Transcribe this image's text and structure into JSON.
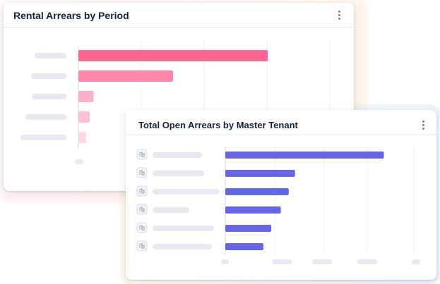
{
  "cards": [
    {
      "title": "Rental Arrears by Period",
      "menu_icon": "kebab-vertical-icon"
    },
    {
      "title": "Total Open Arrears by Master Tenant",
      "menu_icon": "kebab-vertical-icon",
      "row_icon": "company-icon"
    }
  ],
  "chart_data": [
    {
      "type": "bar",
      "orientation": "horizontal",
      "title": "Rental Arrears by Period",
      "series": [
        {
          "values": [
            100,
            50,
            8,
            6,
            4
          ]
        }
      ],
      "colors": [
        "#ff6592",
        "#ff86aa",
        "#ffb0c8",
        "#ffc2d4",
        "#ffd6e2"
      ],
      "xlim": [
        0,
        100
      ],
      "grid": true,
      "legend": "none"
    },
    {
      "type": "bar",
      "orientation": "horizontal",
      "title": "Total Open Arrears by Master Tenant",
      "series": [
        {
          "values": [
            100,
            44,
            40,
            35,
            29,
            24
          ]
        }
      ],
      "colors": [
        "#6366e6"
      ],
      "xlim": [
        0,
        110
      ],
      "grid": true,
      "legend": "none"
    }
  ]
}
